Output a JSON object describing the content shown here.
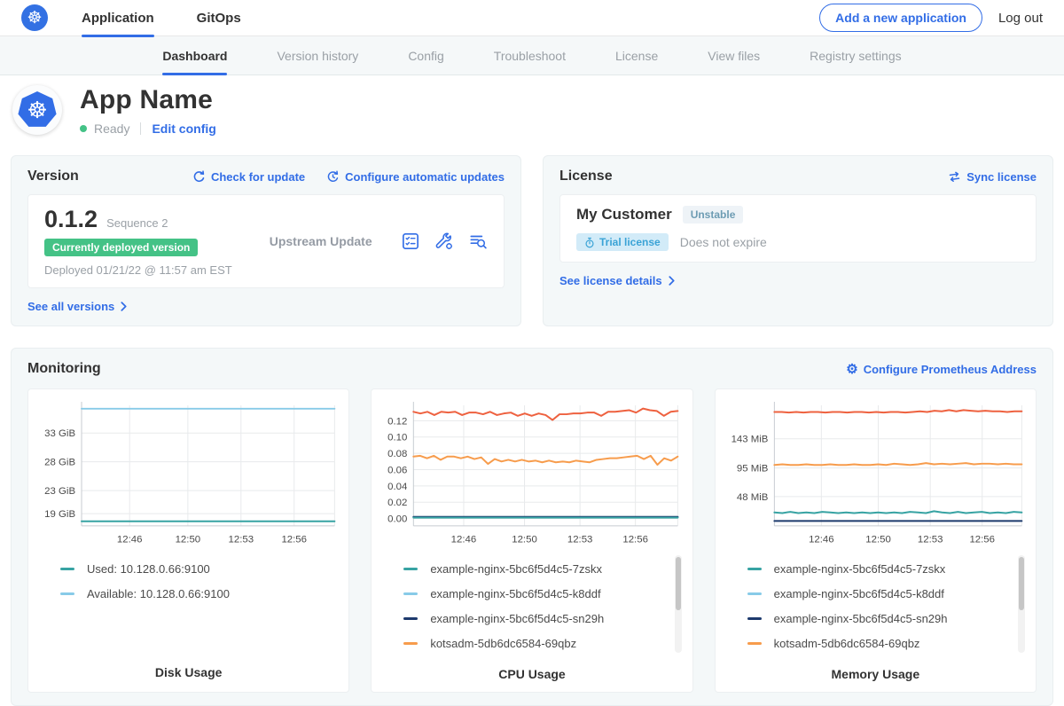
{
  "colors": {
    "teal": "#37a3a3",
    "lightblue": "#88cbe8",
    "navy": "#1d3a6d",
    "orange": "#f79c4c",
    "redorange": "#ee613f",
    "link": "#326de6",
    "green": "#44c286"
  },
  "icons": {
    "wheel_glyph": "☸",
    "gear_glyph": "⚙"
  },
  "top_nav": {
    "items": [
      {
        "label": "Application"
      },
      {
        "label": "GitOps"
      }
    ],
    "add_button": "Add a new application",
    "logout": "Log out"
  },
  "sub_nav": {
    "tabs": [
      {
        "label": "Dashboard"
      },
      {
        "label": "Version history"
      },
      {
        "label": "Config"
      },
      {
        "label": "Troubleshoot"
      },
      {
        "label": "License"
      },
      {
        "label": "View files"
      },
      {
        "label": "Registry settings"
      }
    ]
  },
  "app_header": {
    "title": "App Name",
    "status": "Ready",
    "edit_link": "Edit config"
  },
  "version_card": {
    "heading": "Version",
    "check_update": "Check for update",
    "configure_updates": "Configure automatic updates",
    "version": "0.1.2",
    "sequence": "Sequence 2",
    "deployed_badge": "Currently deployed version",
    "deployed_at": "Deployed 01/21/22 @ 11:57 am EST",
    "update_type": "Upstream Update",
    "see_all": "See all versions"
  },
  "license_card": {
    "heading": "License",
    "sync": "Sync license",
    "customer": "My Customer",
    "channel_badge": "Unstable",
    "type_badge": "Trial license",
    "expiry": "Does not expire",
    "details_link": "See license details"
  },
  "monitoring": {
    "heading": "Monitoring",
    "configure_link": "Configure Prometheus Address"
  },
  "chart_data": [
    {
      "type": "line",
      "title": "Disk Usage",
      "ylim": [
        16.9,
        37.8
      ],
      "y_ticks": [
        {
          "v": 19,
          "label": "19 GiB"
        },
        {
          "v": 23,
          "label": "23 GiB"
        },
        {
          "v": 28,
          "label": "28 GiB"
        },
        {
          "v": 33,
          "label": "33 GiB"
        }
      ],
      "x_ticks": [
        {
          "f": 0.19,
          "label": "12:46"
        },
        {
          "f": 0.42,
          "label": "12:50"
        },
        {
          "f": 0.63,
          "label": "12:53"
        },
        {
          "f": 0.84,
          "label": "12:56"
        }
      ],
      "lines": [
        {
          "color": "lightblue",
          "values": [
            37.2,
            37.2,
            37.2,
            37.2,
            37.2,
            37.2,
            37.2,
            37.2
          ]
        },
        {
          "color": "teal",
          "values": [
            17.7,
            17.7,
            17.7,
            17.7,
            17.7,
            17.7,
            17.7,
            17.7
          ]
        }
      ],
      "legend": [
        {
          "color": "teal",
          "label": "Used: 10.128.0.66:9100"
        },
        {
          "color": "lightblue",
          "label": "Available: 10.128.0.66:9100"
        }
      ],
      "scrollbar": false
    },
    {
      "type": "line",
      "title": "CPU Usage",
      "ylim": [
        -0.009,
        0.139
      ],
      "y_ticks": [
        {
          "v": 0.0,
          "label": "0.00"
        },
        {
          "v": 0.02,
          "label": "0.02"
        },
        {
          "v": 0.04,
          "label": "0.04"
        },
        {
          "v": 0.06,
          "label": "0.06"
        },
        {
          "v": 0.08,
          "label": "0.08"
        },
        {
          "v": 0.1,
          "label": "0.10"
        },
        {
          "v": 0.12,
          "label": "0.12"
        }
      ],
      "x_ticks": [
        {
          "f": 0.19,
          "label": "12:46"
        },
        {
          "f": 0.42,
          "label": "12:50"
        },
        {
          "f": 0.63,
          "label": "12:53"
        },
        {
          "f": 0.84,
          "label": "12:56"
        }
      ],
      "lines": [
        {
          "color": "redorange",
          "values": [
            0.131,
            0.129,
            0.131,
            0.127,
            0.131,
            0.13,
            0.131,
            0.127,
            0.13,
            0.13,
            0.128,
            0.131,
            0.127,
            0.129,
            0.13,
            0.126,
            0.129,
            0.126,
            0.129,
            0.127,
            0.121,
            0.128,
            0.128,
            0.129,
            0.129,
            0.13,
            0.13,
            0.126,
            0.131,
            0.131,
            0.132,
            0.133,
            0.13,
            0.135,
            0.133,
            0.132,
            0.126,
            0.131,
            0.132
          ]
        },
        {
          "color": "orange",
          "values": [
            0.076,
            0.077,
            0.074,
            0.077,
            0.072,
            0.076,
            0.076,
            0.074,
            0.076,
            0.073,
            0.075,
            0.067,
            0.073,
            0.07,
            0.072,
            0.07,
            0.072,
            0.07,
            0.071,
            0.069,
            0.071,
            0.069,
            0.07,
            0.069,
            0.071,
            0.07,
            0.069,
            0.072,
            0.073,
            0.074,
            0.074,
            0.075,
            0.076,
            0.077,
            0.073,
            0.077,
            0.066,
            0.074,
            0.071,
            0.076
          ]
        },
        {
          "color": "lightblue",
          "values": [
            0.0015,
            0.0015,
            0.0015,
            0.0015,
            0.0015,
            0.0015,
            0.0015,
            0.0015
          ]
        },
        {
          "color": "navy",
          "values": [
            0.002,
            0.002,
            0.002,
            0.002,
            0.002,
            0.002,
            0.002,
            0.002
          ]
        },
        {
          "color": "teal",
          "values": [
            0.001,
            0.001,
            0.001,
            0.001,
            0.001,
            0.001,
            0.001,
            0.001
          ]
        }
      ],
      "legend": [
        {
          "color": "teal",
          "label": "example-nginx-5bc6f5d4c5-7zskx"
        },
        {
          "color": "lightblue",
          "label": "example-nginx-5bc6f5d4c5-k8ddf"
        },
        {
          "color": "navy",
          "label": "example-nginx-5bc6f5d4c5-sn29h"
        },
        {
          "color": "orange",
          "label": "kotsadm-5db6dc6584-69qbz"
        }
      ],
      "scrollbar": true
    },
    {
      "type": "line",
      "title": "Memory Usage",
      "ylim": [
        0,
        198
      ],
      "y_ticks": [
        {
          "v": 48,
          "label": "48 MiB"
        },
        {
          "v": 95,
          "label": "95 MiB"
        },
        {
          "v": 143,
          "label": "143 MiB"
        }
      ],
      "x_ticks": [
        {
          "f": 0.19,
          "label": "12:46"
        },
        {
          "f": 0.42,
          "label": "12:50"
        },
        {
          "f": 0.63,
          "label": "12:53"
        },
        {
          "f": 0.84,
          "label": "12:56"
        }
      ],
      "lines": [
        {
          "color": "redorange",
          "values": [
            187,
            187,
            186,
            187,
            186,
            187,
            187,
            186,
            187,
            187,
            186,
            187,
            187,
            186,
            187,
            186,
            187,
            187,
            186,
            187,
            188,
            187,
            189,
            188,
            190,
            188,
            190,
            189,
            188,
            189,
            188,
            188,
            187,
            188,
            188
          ]
        },
        {
          "color": "orange",
          "values": [
            100,
            101,
            100,
            100,
            101,
            100,
            100,
            101,
            100,
            100,
            101,
            100,
            100,
            101,
            100,
            102,
            101,
            100,
            101,
            103,
            101,
            102,
            101,
            102,
            103,
            101,
            102,
            102,
            101,
            102,
            101,
            101
          ]
        },
        {
          "color": "navy",
          "values": [
            8,
            8,
            8,
            8,
            8,
            8,
            8,
            8
          ]
        },
        {
          "color": "teal",
          "values": [
            22,
            21,
            23,
            21,
            22,
            21,
            23,
            22,
            21,
            22,
            21,
            22,
            21,
            22,
            21,
            22,
            21,
            23,
            22,
            21,
            24,
            22,
            21,
            23,
            21,
            22,
            23,
            21,
            22,
            21,
            23,
            22
          ]
        }
      ],
      "legend": [
        {
          "color": "teal",
          "label": "example-nginx-5bc6f5d4c5-7zskx"
        },
        {
          "color": "lightblue",
          "label": "example-nginx-5bc6f5d4c5-k8ddf"
        },
        {
          "color": "navy",
          "label": "example-nginx-5bc6f5d4c5-sn29h"
        },
        {
          "color": "orange",
          "label": "kotsadm-5db6dc6584-69qbz"
        }
      ],
      "scrollbar": true
    }
  ]
}
